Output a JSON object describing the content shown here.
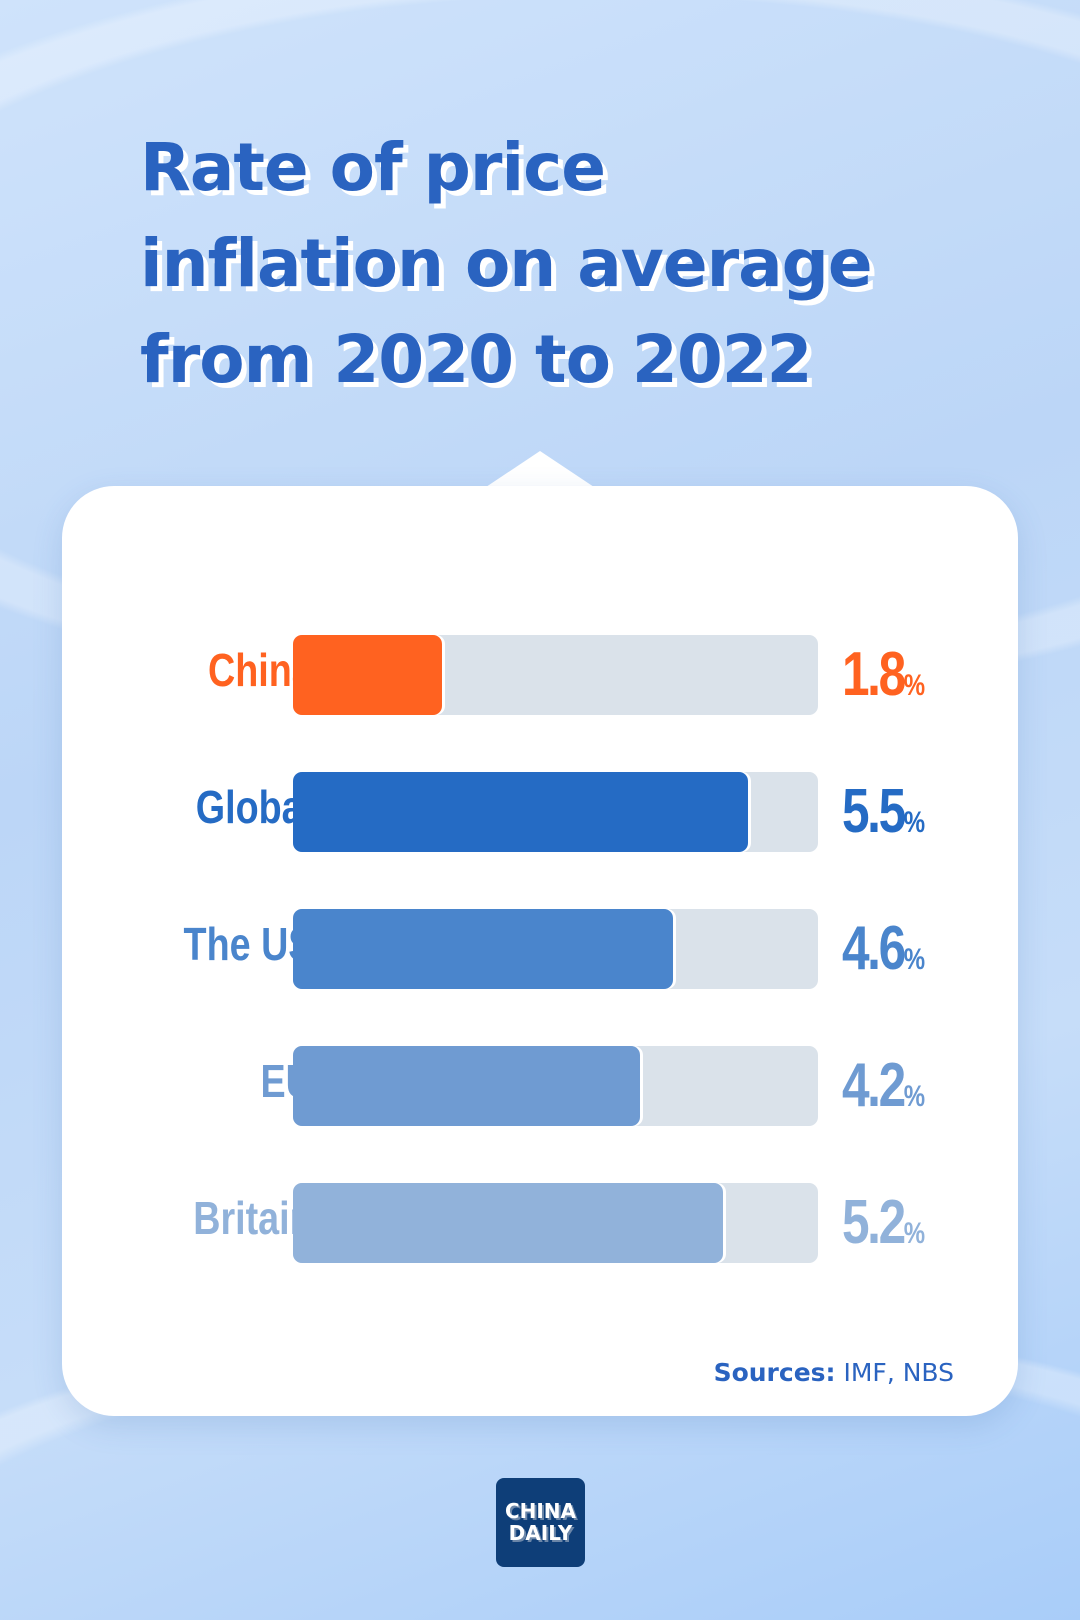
{
  "chart_data": {
    "type": "bar",
    "orientation": "horizontal",
    "title": "Rate of price inflation on average from 2020 to 2022",
    "categories": [
      "China",
      "Global",
      "The US",
      "EU",
      "Britain"
    ],
    "values": [
      1.8,
      5.5,
      4.6,
      4.2,
      5.2
    ],
    "value_labels": [
      "1.8",
      "5.5",
      "4.6",
      "4.2",
      "5.2"
    ],
    "unit": "%",
    "xlim": [
      0,
      6.35
    ],
    "grid": false,
    "colors": [
      "#ff6220",
      "#256bc4",
      "#4a85cc",
      "#6f9bd2",
      "#91b2da"
    ],
    "track_color": "#dae2ea"
  },
  "title_lines": [
    "Rate of price",
    "inflation on average",
    "from 2020 to 2022"
  ],
  "sources": {
    "label": "Sources:",
    "value": " IMF,  NBS"
  },
  "logo": {
    "line1": "CHINA",
    "line2": "DAILY"
  }
}
